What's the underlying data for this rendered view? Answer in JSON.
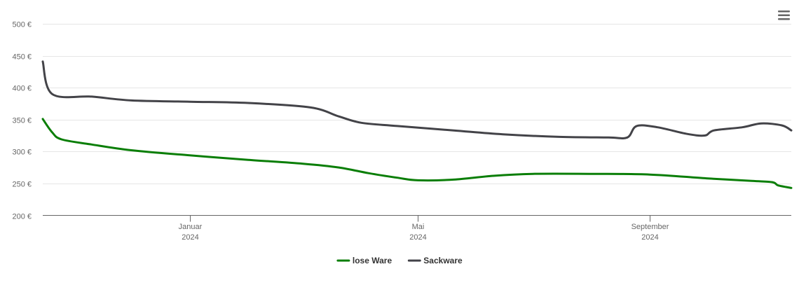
{
  "chart_data": {
    "type": "line",
    "x_type": "date",
    "y_unit": "€",
    "ylim": [
      200,
      500
    ],
    "yticks": [
      200,
      250,
      300,
      350,
      400,
      450,
      500
    ],
    "ytick_labels": [
      "200 €",
      "250 €",
      "300 €",
      "350 €",
      "400 €",
      "450 €",
      "500 €"
    ],
    "xlim": [
      "2023-10-15",
      "2024-11-15"
    ],
    "xticks": [
      {
        "date": "2024-01-01",
        "label_month": "Januar",
        "label_year": "2024"
      },
      {
        "date": "2024-05-01",
        "label_month": "Mai",
        "label_year": "2024"
      },
      {
        "date": "2024-09-01",
        "label_month": "September",
        "label_year": "2024"
      }
    ],
    "grid": true,
    "legend_position": "bottom-center",
    "series": [
      {
        "name": "lose Ware",
        "color": "#0a7e07",
        "points": [
          [
            "2023-10-15",
            351
          ],
          [
            "2023-10-20",
            330
          ],
          [
            "2023-10-25",
            319
          ],
          [
            "2023-11-10",
            311
          ],
          [
            "2023-12-01",
            302
          ],
          [
            "2024-01-01",
            294
          ],
          [
            "2024-02-01",
            287
          ],
          [
            "2024-03-01",
            281
          ],
          [
            "2024-03-20",
            275
          ],
          [
            "2024-04-05",
            266
          ],
          [
            "2024-04-20",
            259
          ],
          [
            "2024-05-01",
            255
          ],
          [
            "2024-05-20",
            256
          ],
          [
            "2024-06-10",
            262
          ],
          [
            "2024-07-01",
            265
          ],
          [
            "2024-08-01",
            265
          ],
          [
            "2024-09-01",
            264
          ],
          [
            "2024-10-01",
            258
          ],
          [
            "2024-10-25",
            254
          ],
          [
            "2024-11-05",
            252
          ],
          [
            "2024-11-08",
            247
          ],
          [
            "2024-11-15",
            243
          ]
        ]
      },
      {
        "name": "Sackware",
        "color": "#434348",
        "points": [
          [
            "2023-10-15",
            441
          ],
          [
            "2023-10-20",
            390
          ],
          [
            "2023-11-10",
            386
          ],
          [
            "2023-12-01",
            380
          ],
          [
            "2024-01-01",
            378
          ],
          [
            "2024-02-01",
            376
          ],
          [
            "2024-03-05",
            369
          ],
          [
            "2024-03-20",
            355
          ],
          [
            "2024-04-01",
            345
          ],
          [
            "2024-04-20",
            340
          ],
          [
            "2024-05-20",
            333
          ],
          [
            "2024-06-15",
            327
          ],
          [
            "2024-07-15",
            323
          ],
          [
            "2024-08-10",
            322
          ],
          [
            "2024-08-20",
            322
          ],
          [
            "2024-08-25",
            340
          ],
          [
            "2024-09-05",
            338
          ],
          [
            "2024-09-20",
            328
          ],
          [
            "2024-09-30",
            325
          ],
          [
            "2024-10-05",
            333
          ],
          [
            "2024-10-20",
            338
          ],
          [
            "2024-10-30",
            344
          ],
          [
            "2024-11-10",
            341
          ],
          [
            "2024-11-15",
            333
          ]
        ]
      }
    ]
  }
}
